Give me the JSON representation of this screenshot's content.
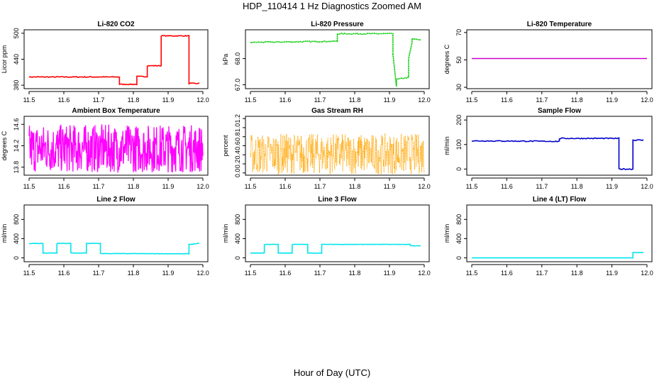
{
  "title": "HDP_110414  1 Hz Diagnostics Zoomed AM",
  "xcaption": "Hour of Day (UTC)",
  "chart_data": [
    {
      "type": "line",
      "title": "Li-820 CO2",
      "ylabel": "Licor ppm",
      "color": "#ff0000",
      "xlim": [
        11.5,
        12.0
      ],
      "ylim": [
        372,
        508
      ],
      "xticks": [
        "11.5",
        "11.6",
        "11.7",
        "11.8",
        "11.9",
        "12.0"
      ],
      "yticks": [
        380,
        440,
        500
      ],
      "x": [
        11.5,
        11.76,
        11.76,
        11.81,
        11.81,
        11.84,
        11.84,
        11.88,
        11.88,
        11.96,
        11.96,
        11.99
      ],
      "y": [
        399,
        399,
        382,
        382,
        400,
        400,
        425,
        425,
        494,
        494,
        384,
        384
      ],
      "noise": 1.0,
      "style": "line"
    },
    {
      "type": "line",
      "title": "Li-820 Pressure",
      "ylabel": "kPa",
      "color": "#00cc00",
      "xlim": [
        11.5,
        12.0
      ],
      "ylim": [
        66.85,
        69.1
      ],
      "xticks": [
        "11.5",
        "11.6",
        "11.7",
        "11.8",
        "11.9",
        "12.0"
      ],
      "yticks": [
        "67.0",
        "68.0"
      ],
      "x": [
        11.5,
        11.75,
        11.75,
        11.91,
        11.91,
        11.92,
        11.92,
        11.955,
        11.955,
        11.965,
        11.965,
        11.99
      ],
      "y": [
        68.62,
        68.66,
        68.95,
        68.95,
        68.15,
        66.95,
        67.2,
        67.28,
        68.0,
        68.6,
        68.75,
        68.72
      ],
      "noise": 0.02,
      "style": "dots"
    },
    {
      "type": "line",
      "title": "Li-820 Temperature",
      "ylabel": "degrees C",
      "color": "#cc00cc",
      "xlim": [
        11.5,
        12.0
      ],
      "ylim": [
        29,
        72
      ],
      "xticks": [
        "11.5",
        "11.6",
        "11.7",
        "11.8",
        "11.9",
        "12.0"
      ],
      "yticks": [
        30,
        50,
        70
      ],
      "x": [
        11.5,
        12.0
      ],
      "y": [
        51,
        51
      ],
      "noise": 0,
      "style": "line"
    },
    {
      "type": "line",
      "title": "Ambient Box Temperature",
      "ylabel": "degrees C",
      "color": "#ff00ff",
      "xlim": [
        11.5,
        12.0
      ],
      "ylim": [
        13.65,
        14.75
      ],
      "xticks": [
        "11.5",
        "11.6",
        "11.7",
        "11.8",
        "11.9",
        "12.0"
      ],
      "yticks": [
        "13.8",
        "14.2",
        "14.6"
      ],
      "x": [
        11.5,
        12.0
      ],
      "y": [
        14.15,
        14.15
      ],
      "noise": 0.45,
      "style": "dense"
    },
    {
      "type": "line",
      "title": "Gas Stream RH",
      "ylabel": "percent",
      "color": "#ffa500",
      "xlim": [
        11.5,
        12.0
      ],
      "ylim": [
        -0.05,
        1.25
      ],
      "xticks": [
        "11.5",
        "11.6",
        "11.7",
        "11.8",
        "11.9",
        "12.0"
      ],
      "yticks": [
        "0.0",
        "0.2",
        "0.4",
        "0.6",
        "0.8",
        "1.0",
        "1.2"
      ],
      "x": [
        11.5,
        12.0
      ],
      "y": [
        0.42,
        0.42
      ],
      "noise": 0.45,
      "style": "dotsdense"
    },
    {
      "type": "line",
      "title": "Sample Flow",
      "ylabel": "ml/min",
      "color": "#0000cc",
      "xlim": [
        11.5,
        12.0
      ],
      "ylim": [
        -25,
        215
      ],
      "xticks": [
        "11.5",
        "11.6",
        "11.7",
        "11.8",
        "11.9",
        "12.0"
      ],
      "yticks": [
        0,
        100,
        200
      ],
      "x": [
        11.5,
        11.75,
        11.75,
        11.92,
        11.92,
        11.96,
        11.96,
        11.99
      ],
      "y": [
        115,
        113,
        125,
        125,
        0,
        0,
        118,
        118
      ],
      "noise": 2,
      "style": "line"
    },
    {
      "type": "line",
      "title": "Line 2 Flow",
      "ylabel": "ml/min",
      "color": "#00e5ee",
      "xlim": [
        11.5,
        12.0
      ],
      "ylim": [
        -80,
        1100
      ],
      "xticks": [
        "11.5",
        "11.6",
        "11.7",
        "11.8",
        "11.9",
        "12.0"
      ],
      "yticks": [
        0,
        400,
        800
      ],
      "x": [
        11.5,
        11.54,
        11.54,
        11.58,
        11.58,
        11.62,
        11.62,
        11.665,
        11.665,
        11.705,
        11.705,
        11.96,
        11.96,
        11.99
      ],
      "y": [
        300,
        300,
        100,
        100,
        300,
        300,
        100,
        100,
        300,
        300,
        90,
        85,
        280,
        300
      ],
      "noise": 4,
      "style": "line"
    },
    {
      "type": "line",
      "title": "Line 3 Flow",
      "ylabel": "ml/min",
      "color": "#00e5ee",
      "xlim": [
        11.5,
        12.0
      ],
      "ylim": [
        -80,
        1100
      ],
      "xticks": [
        "11.5",
        "11.6",
        "11.7",
        "11.8",
        "11.9",
        "12.0"
      ],
      "yticks": [
        0,
        400,
        800
      ],
      "x": [
        11.5,
        11.54,
        11.54,
        11.58,
        11.58,
        11.62,
        11.62,
        11.665,
        11.665,
        11.705,
        11.705,
        11.96,
        11.96,
        11.99
      ],
      "y": [
        100,
        100,
        280,
        280,
        100,
        100,
        280,
        280,
        100,
        100,
        280,
        280,
        250,
        250
      ],
      "noise": 3,
      "style": "line"
    },
    {
      "type": "line",
      "title": "Line 4 (LT) Flow",
      "ylabel": "ml/min",
      "color": "#00e5ee",
      "xlim": [
        11.5,
        12.0
      ],
      "ylim": [
        -80,
        1100
      ],
      "xticks": [
        "11.5",
        "11.6",
        "11.7",
        "11.8",
        "11.9",
        "12.0"
      ],
      "yticks": [
        0,
        400,
        800
      ],
      "x": [
        11.5,
        11.96,
        11.96,
        11.99
      ],
      "y": [
        0,
        0,
        110,
        110
      ],
      "noise": 0,
      "style": "line"
    }
  ]
}
